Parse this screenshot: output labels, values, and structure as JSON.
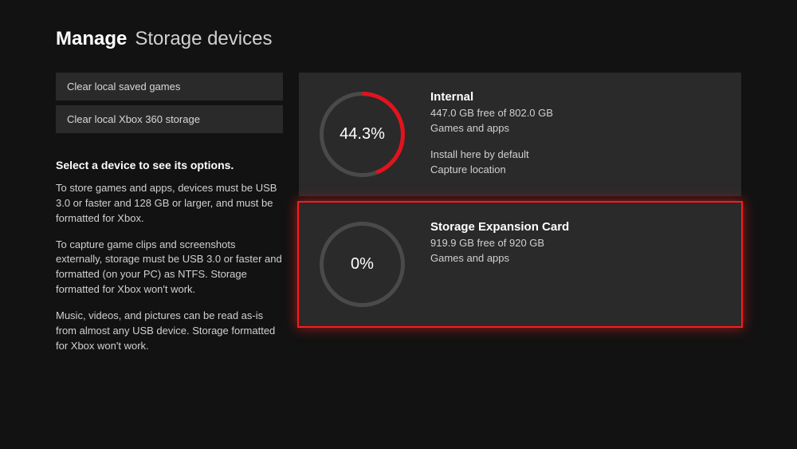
{
  "header": {
    "bold": "Manage",
    "light": "Storage devices"
  },
  "sidebar": {
    "buttons": [
      {
        "label": "Clear local saved games"
      },
      {
        "label": "Clear local Xbox 360 storage"
      }
    ],
    "prompt": "Select a device to see its options.",
    "help": [
      "To store games and apps, devices must be USB 3.0 or faster and 128 GB or larger, and must be formatted for Xbox.",
      "To capture game clips and screenshots externally, storage must be USB 3.0 or faster and formatted (on your PC) as NTFS. Storage formatted for Xbox won't work.",
      "Music, videos, and pictures can be read as-is from almost any USB device. Storage formatted for Xbox won't work."
    ]
  },
  "devices": [
    {
      "name": "Internal",
      "free_text": "447.0 GB free of 802.0 GB",
      "category": "Games and apps",
      "extra": [
        "Install here by default",
        "Capture location"
      ],
      "percent_label": "44.3%",
      "percent_value": 44.3,
      "track_color": "#4a4a4a",
      "fill_color": "#e3121d",
      "selected": false
    },
    {
      "name": "Storage Expansion Card",
      "free_text": "919.9 GB free of 920 GB",
      "category": "Games and apps",
      "extra": [],
      "percent_label": "0%",
      "percent_value": 0,
      "track_color": "#4a4a4a",
      "fill_color": "#e3121d",
      "selected": true
    }
  ],
  "colors": {
    "background": "#121212",
    "panel": "#2a2a2a",
    "text_primary": "#ffffff",
    "text_secondary": "#d0d0d0",
    "selection_glow": "#ff1a1a"
  }
}
